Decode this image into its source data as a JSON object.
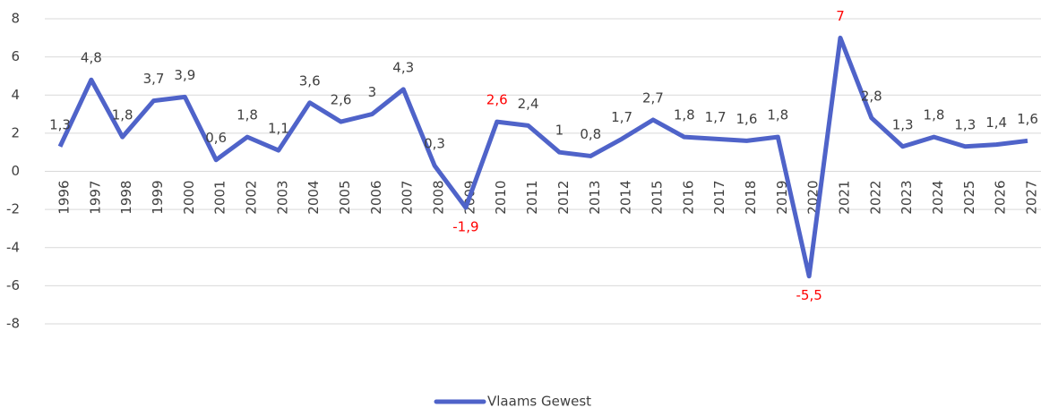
{
  "chart_data": {
    "type": "line",
    "categories": [
      "1996",
      "1997",
      "1998",
      "1999",
      "2000",
      "2001",
      "2002",
      "2003",
      "2004",
      "2005",
      "2006",
      "2007",
      "2008",
      "2009",
      "2010",
      "2011",
      "2012",
      "2013",
      "2014",
      "2015",
      "2016",
      "2017",
      "2018",
      "2019",
      "2020",
      "2021",
      "2022",
      "2023",
      "2024",
      "2025",
      "2026",
      "2027"
    ],
    "series": [
      {
        "name": "Vlaams Gewest",
        "color": "#4f63c9",
        "values": [
          1.3,
          4.8,
          1.8,
          3.7,
          3.9,
          0.6,
          1.8,
          1.1,
          3.6,
          2.6,
          3,
          4.3,
          0.3,
          -1.9,
          2.6,
          2.4,
          1,
          0.8,
          1.7,
          2.7,
          1.8,
          1.7,
          1.6,
          1.8,
          -5.5,
          7,
          2.8,
          1.3,
          1.8,
          1.3,
          1.4,
          1.6
        ],
        "value_labels": [
          "1,3",
          "4,8",
          "1,8",
          "3,7",
          "3,9",
          "0,6",
          "1,8",
          "1,1",
          "3,6",
          "2,6",
          "3",
          "4,3",
          "0,3",
          "-1,9",
          "2,6",
          "2,4",
          "1",
          "0,8",
          "1,7",
          "2,7",
          "1,8",
          "1,7",
          "1,6",
          "1,8",
          "-5,5",
          "7",
          "2,8",
          "1,3",
          "1,8",
          "1,3",
          "1,4",
          "1,6"
        ],
        "value_label_colors": [
          "#404040",
          "#404040",
          "#404040",
          "#404040",
          "#404040",
          "#404040",
          "#404040",
          "#404040",
          "#404040",
          "#404040",
          "#404040",
          "#404040",
          "#404040",
          "#ff0000",
          "#ff0000",
          "#404040",
          "#404040",
          "#404040",
          "#404040",
          "#404040",
          "#404040",
          "#404040",
          "#404040",
          "#404040",
          "#ff0000",
          "#ff0000",
          "#404040",
          "#404040",
          "#404040",
          "#404040",
          "#404040",
          "#404040"
        ]
      }
    ],
    "ylim": [
      -8,
      8
    ],
    "yticks": [
      -8,
      -6,
      -4,
      -2,
      0,
      2,
      4,
      6,
      8
    ],
    "grid": true,
    "legend": "bottom"
  }
}
